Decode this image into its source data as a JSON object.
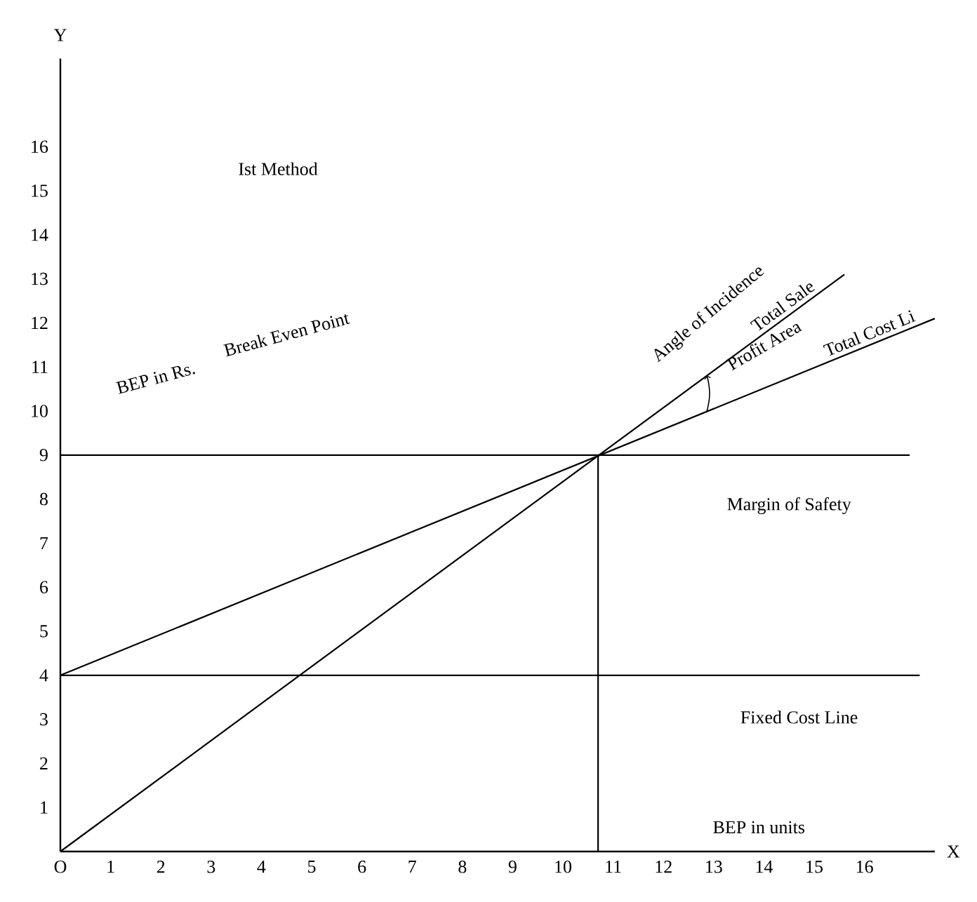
{
  "chart_data": {
    "type": "line",
    "xlabel": "X",
    "ylabel": "Y",
    "xlim": [
      0,
      17.4
    ],
    "ylim": [
      0,
      18
    ],
    "xticks": [
      {
        "value": 0,
        "label": "O"
      },
      1,
      2,
      3,
      4,
      5,
      6,
      7,
      8,
      9,
      10,
      11,
      12,
      13,
      14,
      15,
      16
    ],
    "yticks": [
      1,
      2,
      3,
      4,
      5,
      6,
      7,
      8,
      9,
      10,
      11,
      12,
      13,
      14,
      15,
      16
    ],
    "grid": false,
    "legend": false,
    "marker": "none",
    "line_style": "solid",
    "annotations": [
      "Ist Method",
      "BEP in Rs.",
      "Break Even Point",
      "Angle of Incidence",
      "Profit Area",
      "Margin of Safety",
      "Fixed Cost Line",
      "BEP in units"
    ],
    "series": [
      {
        "name": "Total Sale",
        "color": "#000000",
        "x": [
          0,
          15.6
        ],
        "values": [
          0,
          13.1
        ]
      },
      {
        "name": "Total Cost Li",
        "color": "#000000",
        "x": [
          0,
          17.4
        ],
        "values": [
          4,
          12.1
        ]
      },
      {
        "color": "#000000",
        "x": [
          0,
          17.1
        ],
        "values": [
          4,
          4
        ]
      },
      {
        "color": "#000000",
        "x": [
          0,
          16.9
        ],
        "values": [
          9,
          9
        ]
      },
      {
        "color": "#000000",
        "x": [
          10.7,
          10.7
        ],
        "values": [
          0,
          9
        ]
      }
    ]
  }
}
